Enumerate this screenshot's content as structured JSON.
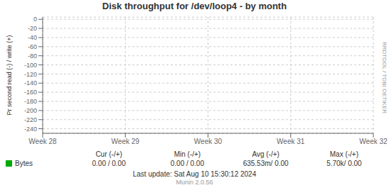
{
  "chart_data": {
    "type": "line",
    "title": "Disk throughput for /dev/loop4 - by month",
    "y_label": "Pr second read (-) / write (+)",
    "categories": [
      "Week 28",
      "Week 29",
      "Week 30",
      "Week 31",
      "Week 32"
    ],
    "series": [
      {
        "name": "Bytes",
        "color": "#00aa00",
        "values": [
          null,
          null,
          null,
          null,
          null
        ]
      }
    ],
    "ylim": [
      -250,
      5
    ],
    "yticks": [
      0,
      -20,
      -40,
      -60,
      -80,
      -100,
      -120,
      -140,
      -160,
      -180,
      -200,
      -220,
      -240
    ],
    "grid": true,
    "legend": "bottom",
    "table": {
      "columns": [
        "Cur (-/+)",
        "Min (-/+)",
        "Avg (-/+)",
        "Max (-/+)"
      ],
      "cells": [
        [
          "0.00 /",
          "0.00"
        ],
        [
          "0.00 /",
          "0.00"
        ],
        [
          "635.53m/",
          "0.00"
        ],
        [
          "5.70k/",
          "0.00"
        ]
      ]
    },
    "footer": [
      "Last update: Sat Aug 10 15:30:12 2024",
      "Munin 2.0.56"
    ],
    "watermark": "RRDTOOL / TOBI OETIKER"
  }
}
